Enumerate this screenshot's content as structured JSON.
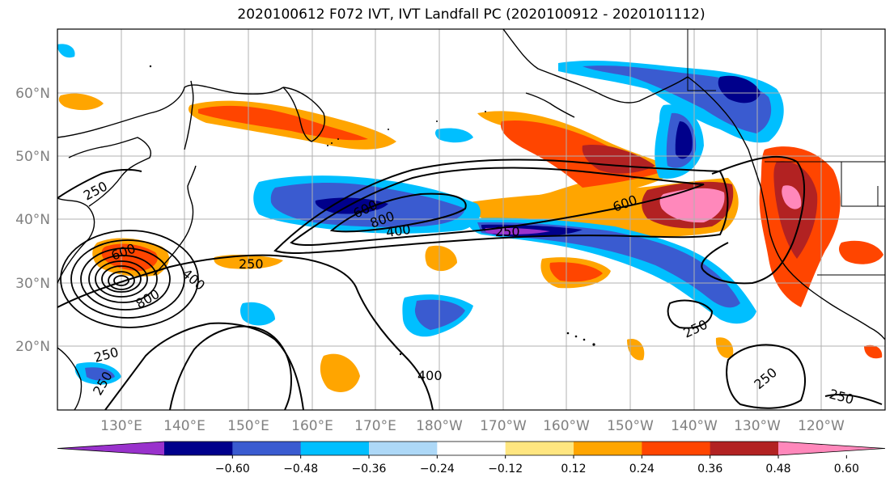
{
  "title": "2020100612 F072 IVT, IVT Landfall PC (2020100912 - 2020101112)",
  "chart_data": {
    "type": "heatmap",
    "map_region": "North Pacific",
    "lon_ticks": [
      "130°E",
      "140°E",
      "150°E",
      "160°E",
      "170°E",
      "180°W",
      "170°W",
      "160°W",
      "150°W",
      "140°W",
      "130°W",
      "120°W"
    ],
    "lat_ticks": [
      "60°N",
      "50°N",
      "40°N",
      "30°N",
      "20°N"
    ],
    "grid": true,
    "contour_values_shown": [
      "250",
      "400",
      "600",
      "800"
    ],
    "colorbar": {
      "ticks": [
        "−0.60",
        "−0.48",
        "−0.36",
        "−0.24",
        "−0.12",
        "0.12",
        "0.24",
        "0.36",
        "0.48",
        "0.60"
      ],
      "colors": [
        "#9932cc",
        "#00008b",
        "#3a5bd0",
        "#00bfff",
        "#add8f7",
        "#ffffff",
        "#ffe680",
        "#ffa500",
        "#ff4500",
        "#b22222",
        "#ff88bb"
      ],
      "extend": "both",
      "placement": "bottom"
    }
  }
}
